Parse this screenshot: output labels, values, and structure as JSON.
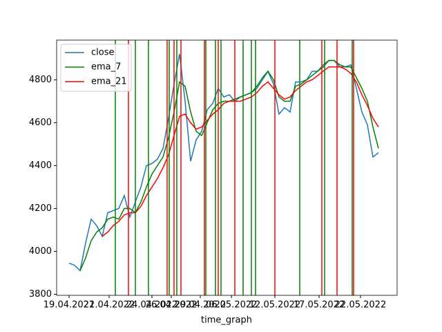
{
  "chart_data": {
    "type": "line",
    "xlabel": "time_graph",
    "x": [
      0,
      1,
      2,
      3,
      4,
      5,
      6,
      7,
      8,
      9,
      10,
      11,
      12,
      13,
      14,
      15,
      16,
      17,
      18,
      19,
      20,
      21,
      22,
      23,
      24,
      25,
      26,
      27,
      28,
      29,
      30,
      31,
      32,
      33,
      34,
      35,
      36,
      37,
      38,
      39,
      40,
      41,
      42,
      43,
      44,
      45,
      46,
      47,
      48,
      49,
      50,
      51,
      52,
      53,
      54,
      55,
      56
    ],
    "series": [
      {
        "name": "close",
        "color": "#1f77b4",
        "values": [
          3945,
          3935,
          3910,
          4040,
          4150,
          4120,
          4070,
          4180,
          4190,
          4200,
          4260,
          4160,
          4230,
          4300,
          4400,
          4410,
          4430,
          4480,
          4620,
          4780,
          4920,
          4700,
          4420,
          4520,
          4560,
          4660,
          4690,
          4760,
          4720,
          4730,
          4700,
          4720,
          4730,
          4740,
          4760,
          4800,
          4840,
          4780,
          4640,
          4670,
          4650,
          4790,
          4790,
          4800,
          4840,
          4840,
          4870,
          4890,
          4890,
          4860,
          4860,
          4870,
          4760,
          4650,
          4590,
          4440,
          4460
        ]
      },
      {
        "name": "ema_7",
        "color": "#008000",
        "values": [
          null,
          null,
          3910,
          3970,
          4050,
          4090,
          4110,
          4150,
          4160,
          4150,
          4200,
          4200,
          4180,
          4230,
          4300,
          4360,
          4400,
          4440,
          4530,
          4650,
          4790,
          4770,
          4650,
          4560,
          4540,
          4600,
          4660,
          4690,
          4700,
          4700,
          4710,
          4720,
          4730,
          4740,
          4770,
          4810,
          4840,
          4800,
          4720,
          4700,
          4700,
          4770,
          4780,
          4800,
          4820,
          4840,
          4860,
          4890,
          4890,
          4870,
          4860,
          4860,
          4810,
          4760,
          4700,
          4580,
          4480
        ]
      },
      {
        "name": "ema_21",
        "color": "#ff0000",
        "values": [
          null,
          null,
          null,
          null,
          null,
          null,
          4070,
          4090,
          4120,
          4140,
          4170,
          4180,
          4180,
          4210,
          4260,
          4300,
          4340,
          4390,
          4450,
          4540,
          4630,
          4640,
          4600,
          4570,
          4580,
          4610,
          4640,
          4660,
          4690,
          4700,
          4700,
          4700,
          4710,
          4720,
          4740,
          4770,
          4790,
          4760,
          4730,
          4710,
          4720,
          4750,
          4770,
          4790,
          4800,
          4820,
          4840,
          4860,
          4860,
          4860,
          4850,
          4830,
          4790,
          4730,
          4680,
          4620,
          4580
        ]
      }
    ],
    "vlines": [
      {
        "color": "#008000",
        "x": [
          8.375,
          12,
          14.375,
          18.125,
          19.5,
          24.75,
          26.5,
          27.5,
          31.5,
          33,
          33.75,
          41.75,
          46.25,
          51.25
        ]
      },
      {
        "color": "#ff0000",
        "x": [
          10.75,
          17.75,
          19,
          20.25,
          24.5,
          27,
          30,
          37.25,
          45.75,
          48.5,
          51.5
        ]
      }
    ],
    "xlim": [
      -2.25,
      59.375
    ],
    "xticks": [
      {
        "value": 0,
        "label": "19.04.2022"
      },
      {
        "value": 7.25,
        "label": "21.04.2022"
      },
      {
        "value": 15,
        "label": "24.04.2022"
      },
      {
        "value": 18.5,
        "label": "26.04.2022"
      },
      {
        "value": 23.75,
        "label": "29.04.2022"
      },
      {
        "value": 29.4,
        "label": "06.05.2022"
      },
      {
        "value": 37.25,
        "label": "12.05.2022"
      },
      {
        "value": 45.25,
        "label": "17.05.2022"
      },
      {
        "value": 52.75,
        "label": "22.05.2022"
      }
    ],
    "ylim": [
      3795,
      4985
    ],
    "yticks": [
      3800,
      4000,
      4200,
      4400,
      4600,
      4800
    ],
    "legend": "upper left"
  }
}
